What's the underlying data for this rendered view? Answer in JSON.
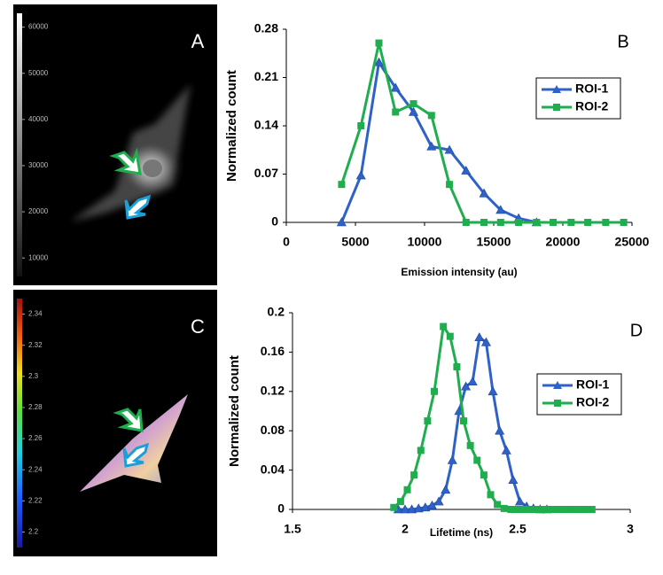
{
  "chart_data": [
    {
      "type": "image",
      "label": "A",
      "clim": [
        6000,
        63000
      ],
      "cticks": [
        10000,
        20000,
        30000,
        40000,
        50000,
        60000
      ]
    },
    {
      "type": "line",
      "label": "B",
      "xlabel": "Emission intensity (au)",
      "ylabel": "Normalized count",
      "xlim": [
        0,
        25000
      ],
      "xticks": [
        0,
        5000,
        10000,
        15000,
        20000,
        25000
      ],
      "ylim": [
        0,
        0.28
      ],
      "yticks": [
        0,
        0.07,
        0.14,
        0.21,
        0.28
      ],
      "series": [
        {
          "name": "ROI-1",
          "color": "#2e62c8",
          "marker": "triangle",
          "x": [
            4000,
            5400,
            6700,
            7900,
            9200,
            10500,
            11800,
            13000,
            14300,
            15500,
            16800,
            18100
          ],
          "values": [
            0,
            0.068,
            0.232,
            0.195,
            0.16,
            0.11,
            0.105,
            0.075,
            0.042,
            0.018,
            0.006,
            0
          ]
        },
        {
          "name": "ROI-2",
          "color": "#1fad4e",
          "marker": "square",
          "x": [
            4000,
            5400,
            6700,
            7900,
            9200,
            10500,
            11800,
            13000,
            14300,
            15500,
            16800,
            18100,
            19300,
            20600,
            21800,
            23100,
            24400
          ],
          "values": [
            0.055,
            0.14,
            0.26,
            0.16,
            0.172,
            0.155,
            0.055,
            0,
            0,
            0,
            0,
            0,
            0,
            0,
            0,
            0,
            0
          ]
        }
      ]
    },
    {
      "type": "image",
      "label": "C",
      "clim": [
        2.19,
        2.35
      ],
      "cticks": [
        2.2,
        2.22,
        2.24,
        2.26,
        2.28,
        2.3,
        2.32,
        2.34
      ]
    },
    {
      "type": "line",
      "label": "D",
      "xlabel": "Lifetime (ns)",
      "ylabel": "Normalized count",
      "xlim": [
        1.5,
        3
      ],
      "xticks": [
        1.5,
        2,
        2.5,
        3
      ],
      "ylim": [
        0,
        0.2
      ],
      "yticks": [
        0,
        0.04,
        0.08,
        0.12,
        0.16,
        0.2
      ],
      "series": [
        {
          "name": "ROI-1",
          "color": "#2e62c8",
          "marker": "triangle",
          "x": [
            1.97,
            2.0,
            2.03,
            2.06,
            2.09,
            2.12,
            2.15,
            2.18,
            2.21,
            2.24,
            2.27,
            2.3,
            2.33,
            2.36,
            2.39,
            2.42,
            2.45,
            2.48,
            2.51,
            2.54,
            2.57,
            2.6,
            2.63
          ],
          "values": [
            0,
            0,
            0,
            0.001,
            0.002,
            0.004,
            0.008,
            0.02,
            0.05,
            0.1,
            0.125,
            0.13,
            0.175,
            0.17,
            0.12,
            0.08,
            0.06,
            0.03,
            0.008,
            0.003,
            0.001,
            0,
            0
          ]
        },
        {
          "name": "ROI-2",
          "color": "#1fad4e",
          "marker": "square",
          "x": [
            1.95,
            1.98,
            2.01,
            2.04,
            2.07,
            2.1,
            2.13,
            2.17,
            2.2,
            2.23,
            2.26,
            2.29,
            2.32,
            2.35,
            2.38,
            2.41,
            2.44,
            2.47,
            2.5,
            2.53,
            2.56,
            2.59,
            2.62,
            2.65,
            2.68,
            2.71,
            2.74,
            2.77,
            2.8,
            2.83
          ],
          "values": [
            0.002,
            0.008,
            0.02,
            0.035,
            0.06,
            0.09,
            0.12,
            0.186,
            0.176,
            0.145,
            0.09,
            0.065,
            0.05,
            0.035,
            0.015,
            0.005,
            0.001,
            0,
            0,
            0,
            0,
            0,
            0,
            0,
            0,
            0,
            0,
            0,
            0,
            0
          ]
        }
      ]
    }
  ]
}
